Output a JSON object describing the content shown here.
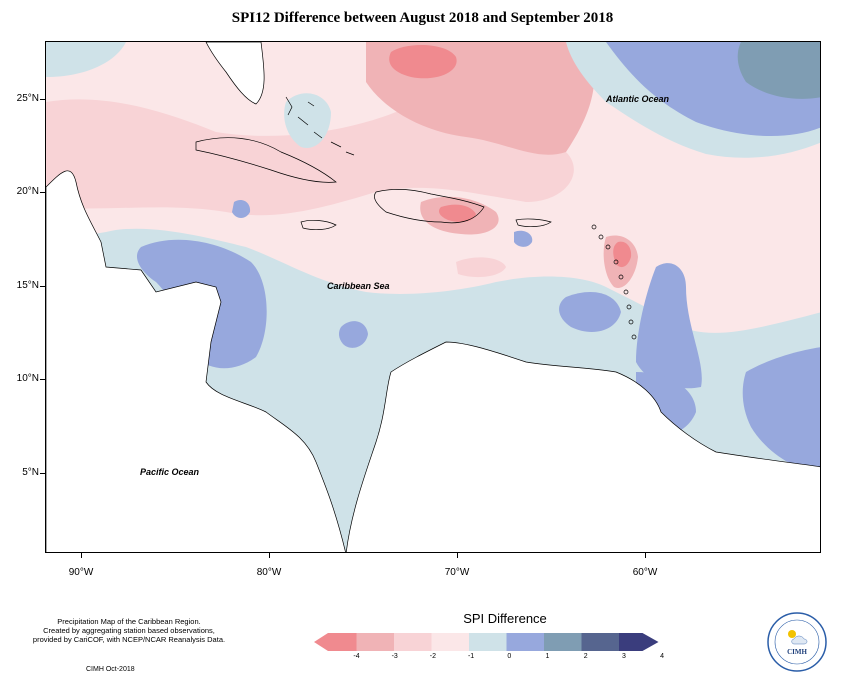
{
  "title": "SPI12 Difference between August 2018 and September 2018",
  "axes": {
    "lat_labels": [
      "25°N",
      "20°N",
      "15°N",
      "10°N",
      "5°N"
    ],
    "lon_labels": [
      "90°W",
      "80°W",
      "70°W",
      "60°W"
    ]
  },
  "places": {
    "atlantic": "Atlantic Ocean",
    "caribbean": "Caribbean Sea",
    "pacific": "Pacific Ocean"
  },
  "legend": {
    "title": "SPI Difference",
    "ticks": [
      "-4",
      "-3",
      "-2",
      "-1",
      "0",
      "1",
      "2",
      "3",
      "4"
    ],
    "colors": [
      "#f08a8f",
      "#f0b3b6",
      "#f8d3d6",
      "#fbe7e8",
      "#cfe2e8",
      "#97a8dd",
      "#7f9db3",
      "#56658f",
      "#3a3d7d"
    ]
  },
  "credits": {
    "line1": "Precipitation Map of the Caribbean Region.",
    "line2": "Created by aggregating station based observations,",
    "line3": "provided by CariCOF, with NCEP/NCAR Reanalysis Data.",
    "issued": "CIMH Oct-2018"
  },
  "logo": {
    "text": "CIMH"
  }
}
